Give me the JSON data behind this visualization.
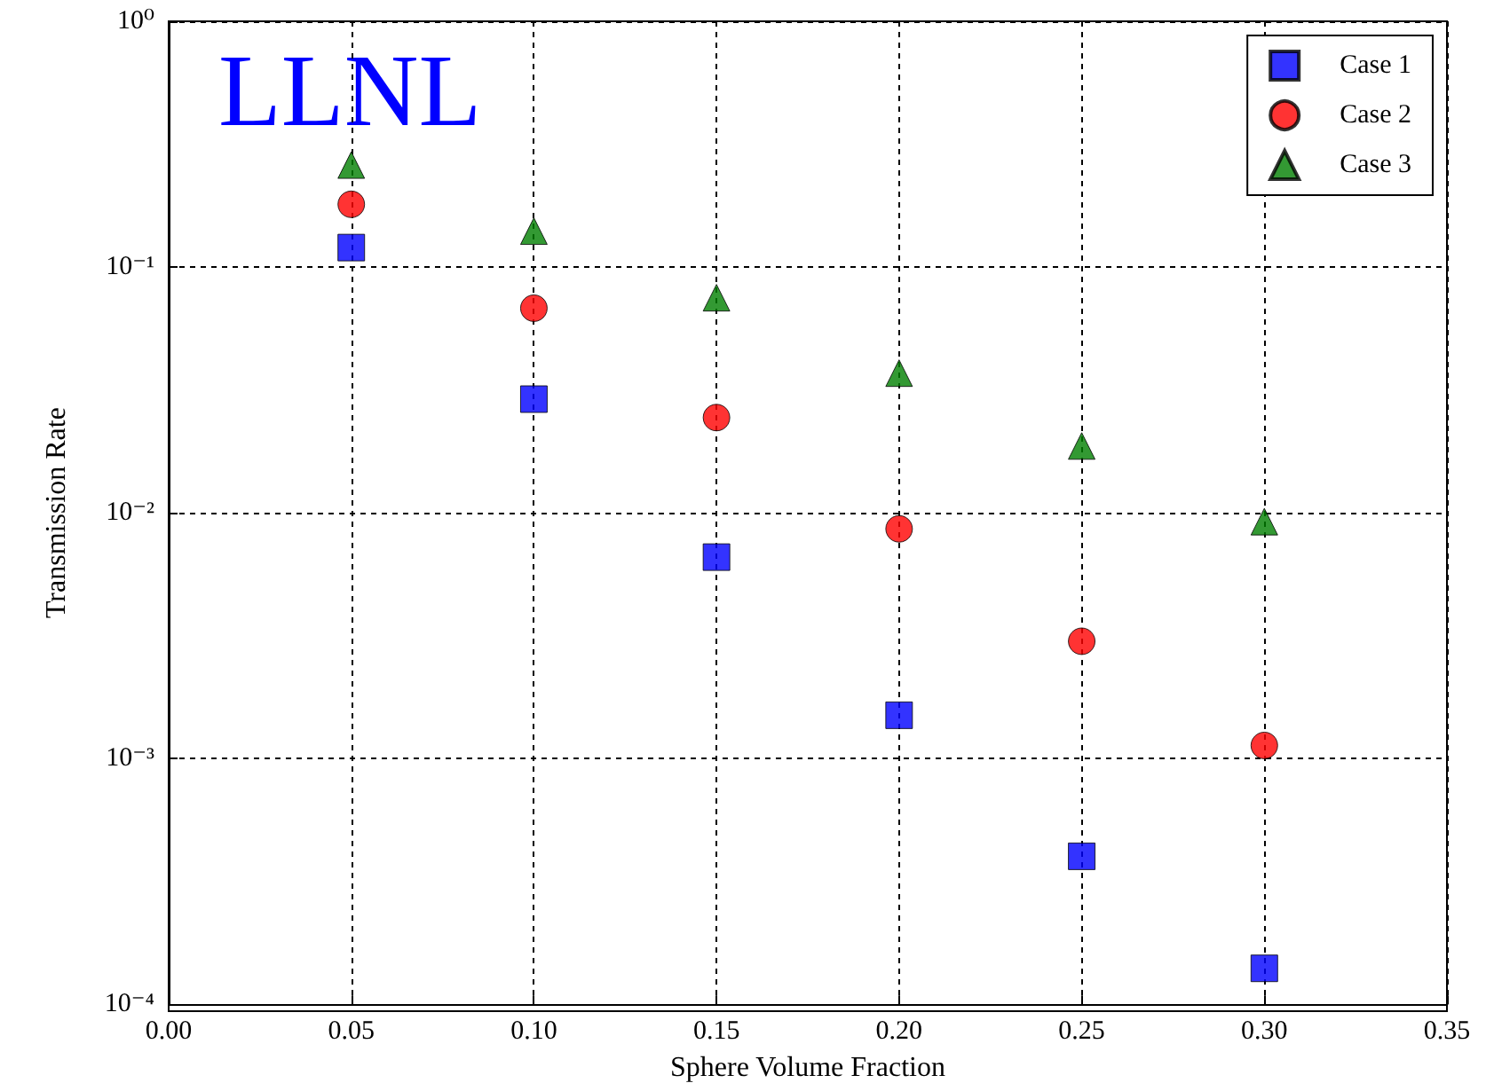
{
  "chart_data": {
    "type": "scatter",
    "xlabel": "Sphere Volume Fraction",
    "ylabel": "Transmission Rate",
    "x": [
      0.05,
      0.1,
      0.15,
      0.2,
      0.25,
      0.3
    ],
    "series": [
      {
        "name": "Case 1",
        "color": "#0000ff",
        "marker": "square",
        "values": [
          0.12,
          0.029,
          0.0066,
          0.0015,
          0.0004,
          0.00014
        ]
      },
      {
        "name": "Case 2",
        "color": "#ff0000",
        "marker": "circle",
        "values": [
          0.18,
          0.068,
          0.0244,
          0.0086,
          0.003,
          0.00113
        ]
      },
      {
        "name": "Case 3",
        "color": "#008000",
        "marker": "triangle",
        "values": [
          0.26,
          0.14,
          0.075,
          0.037,
          0.0187,
          0.0092
        ]
      }
    ],
    "log": "y",
    "xlim": [
      0,
      0.35
    ],
    "ylim": [
      0.0001,
      1
    ],
    "xticks": [
      {
        "value": 0,
        "label": "0.00"
      },
      0.05,
      {
        "value": 0.1,
        "label": "0.10"
      },
      0.15,
      {
        "value": 0.2,
        "label": "0.20"
      },
      0.25,
      {
        "value": 0.3,
        "label": "0.30"
      },
      0.35
    ],
    "yticks": [
      {
        "value": 0.0001,
        "label": "10⁻⁴"
      },
      {
        "value": 0.001,
        "label": "10⁻³"
      },
      {
        "value": 0.01,
        "label": "10⁻²"
      },
      {
        "value": 0.1,
        "label": "10⁻¹"
      },
      {
        "value": 1,
        "label": "10⁰"
      }
    ],
    "grid": true,
    "legend": "top right",
    "annotations": [
      "LLNL"
    ]
  }
}
